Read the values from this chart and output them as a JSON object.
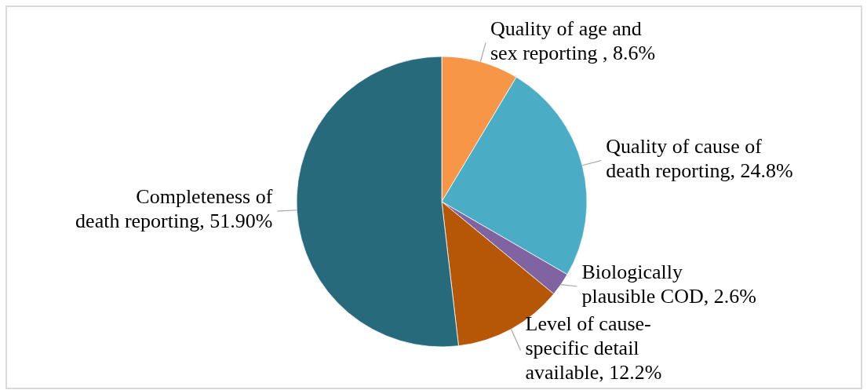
{
  "chart_data": {
    "type": "pie",
    "categories": [
      "Quality of age and sex reporting ",
      "Quality of cause of death reporting",
      "Biologically plausible COD",
      "Level of cause-specific detail available",
      "Completeness of death reporting"
    ],
    "values": [
      8.6,
      24.8,
      2.6,
      12.2,
      51.9
    ],
    "value_labels": [
      "8.6%",
      "24.8%",
      "2.6%",
      "12.2%",
      "51.90%"
    ],
    "colors": [
      "#f79646",
      "#4bacc6",
      "#8064a2",
      "#b65708",
      "#276a7b"
    ]
  }
}
